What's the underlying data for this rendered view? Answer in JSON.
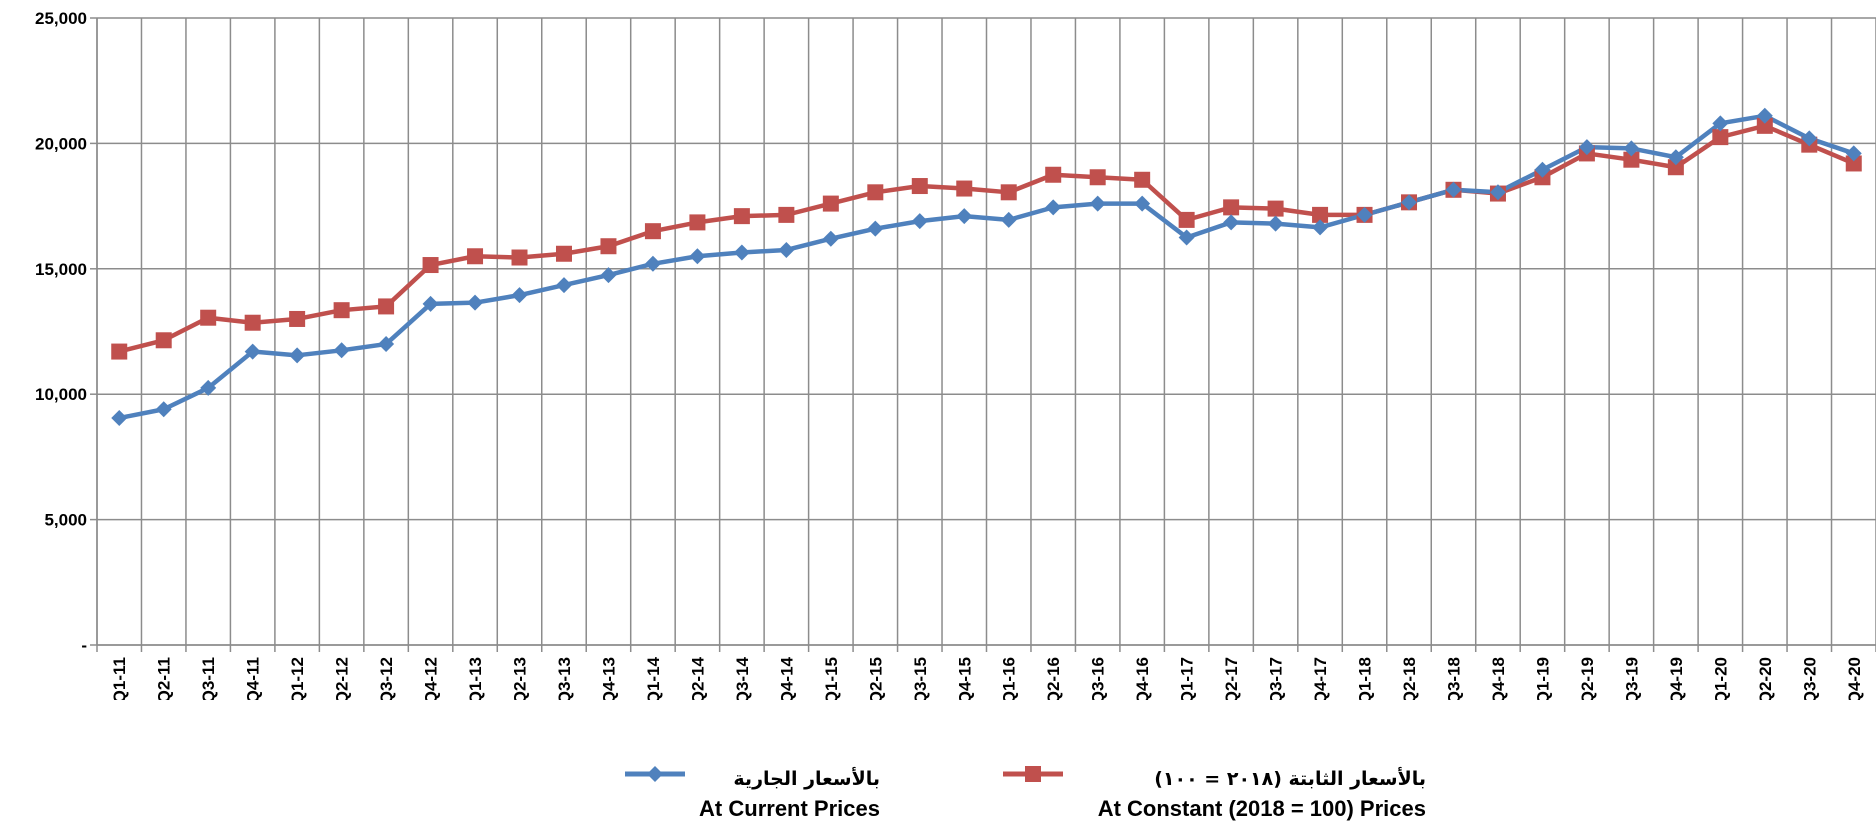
{
  "chart_data": {
    "type": "line",
    "title": "",
    "xlabel": "",
    "ylabel": "",
    "ylim": [
      0,
      25000
    ],
    "yticks": [
      0,
      5000,
      10000,
      15000,
      20000,
      25000
    ],
    "ytick_labels": [
      "-",
      "5,000",
      "10,000",
      "15,000",
      "20,000",
      "25,000"
    ],
    "grid": true,
    "legend_position": "bottom",
    "categories": [
      "Q1-11",
      "Q2-11",
      "Q3-11",
      "Q4-11",
      "Q1-12",
      "Q2-12",
      "Q3-12",
      "Q4-12",
      "Q1-13",
      "Q2-13",
      "Q3-13",
      "Q4-13",
      "Q1-14",
      "Q2-14",
      "Q3-14",
      "Q4-14",
      "Q1-15",
      "Q2-15",
      "Q3-15",
      "Q4-15",
      "Q1-16",
      "Q2-16",
      "Q3-16",
      "Q4-16",
      "Q1-17",
      "Q2-17",
      "Q3-17",
      "Q4-17",
      "Q1-18",
      "Q2-18",
      "Q3-18",
      "Q4-18",
      "Q1-19",
      "Q2-19",
      "Q3-19",
      "Q4-19",
      "Q1-20",
      "Q2-20",
      "Q3-20",
      "Q4-20"
    ],
    "series": [
      {
        "name_ar": "بالأسعار الجارية",
        "name": "At Current Prices",
        "color": "#4F81BD",
        "marker": "diamond",
        "values": [
          9050,
          9400,
          10250,
          11700,
          11550,
          11750,
          12000,
          13600,
          13650,
          13950,
          14350,
          14750,
          15200,
          15500,
          15650,
          15750,
          16200,
          16600,
          16900,
          17100,
          16950,
          17450,
          17600,
          17600,
          16250,
          16850,
          16800,
          16650,
          17150,
          17650,
          18150,
          18050,
          18950,
          19850,
          19800,
          19450,
          20800,
          21100,
          20200,
          19600
        ]
      },
      {
        "name_ar": "بالأسعار الثابتة (٢٠١٨ = ١٠٠)",
        "name": "At Constant (2018 = 100) Prices",
        "color": "#C0504D",
        "marker": "square",
        "values": [
          11700,
          12150,
          13050,
          12850,
          13000,
          13350,
          13500,
          15150,
          15500,
          15450,
          15600,
          15900,
          16500,
          16850,
          17100,
          17150,
          17600,
          18050,
          18300,
          18200,
          18050,
          18750,
          18650,
          18550,
          16950,
          17450,
          17400,
          17150,
          17150,
          17650,
          18150,
          18000,
          18650,
          19600,
          19350,
          19050,
          20250,
          20700,
          19950,
          19200
        ]
      }
    ]
  }
}
